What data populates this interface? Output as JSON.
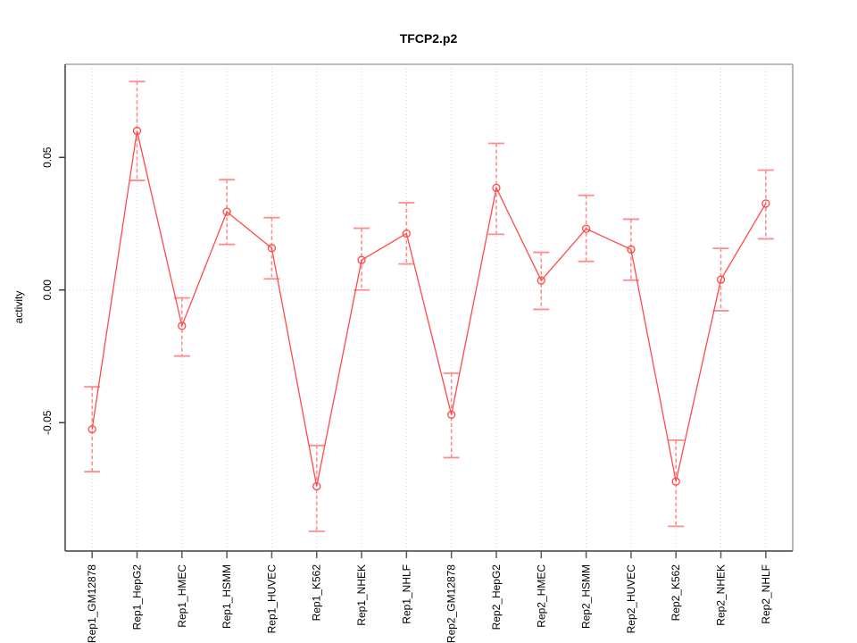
{
  "title": "TFCP2.p2",
  "chart_data": {
    "type": "line",
    "title": "TFCP2.p2",
    "xlabel": "",
    "ylabel": "activity",
    "legend": "none",
    "grid": "vertical dotted gridlines at each category; horizontal dotted line at y=0 only",
    "marker": "open-circle",
    "error_bars": "dashed vertical with solid caps",
    "categories": [
      "Rep1_GM12878",
      "Rep1_HepG2",
      "Rep1_HMEC",
      "Rep1_HSMM",
      "Rep1_HUVEC",
      "Rep1_K562",
      "Rep1_NHEK",
      "Rep1_NHLF",
      "Rep2_GM12878",
      "Rep2_HepG2",
      "Rep2_HMEC",
      "Rep2_HSMM",
      "Rep2_HUVEC",
      "Rep2_K562",
      "Rep2_NHEK",
      "Rep2_NHLF"
    ],
    "series": [
      {
        "name": "activity",
        "values": [
          -0.0525,
          0.06,
          -0.0135,
          0.0295,
          0.0158,
          -0.074,
          0.0113,
          0.0213,
          -0.047,
          0.0385,
          0.0036,
          0.0231,
          0.0153,
          -0.0722,
          0.0039,
          0.0326
        ],
        "error_low": [
          -0.0685,
          0.0413,
          -0.0249,
          0.0172,
          0.0042,
          -0.091,
          0.0,
          0.0098,
          -0.0632,
          0.021,
          -0.0073,
          0.0108,
          0.0037,
          -0.0891,
          -0.0078,
          0.0193
        ],
        "error_high": [
          -0.0365,
          0.0786,
          -0.003,
          0.0416,
          0.0273,
          -0.0586,
          0.0233,
          0.0329,
          -0.0314,
          0.0553,
          0.0142,
          0.0357,
          0.0267,
          -0.0566,
          0.0157,
          0.0452
        ]
      }
    ],
    "yticks": [
      -0.05,
      0.0,
      0.05
    ],
    "ytick_labels": [
      "-0.05",
      "0.00",
      "0.05"
    ],
    "ylim": [
      -0.0984,
      0.0851
    ],
    "colors": {
      "series_line": "#ff4a4a",
      "marker": "#ff4a4a",
      "error_bar": "#ff8c8c",
      "gridline": "#d4d4d4",
      "zero_line": "#d4d4d4",
      "axis_dark": "#3f3f3f",
      "box_light": "#a6a6a6",
      "tick": "#5a5a5a",
      "text": "#000000"
    }
  }
}
